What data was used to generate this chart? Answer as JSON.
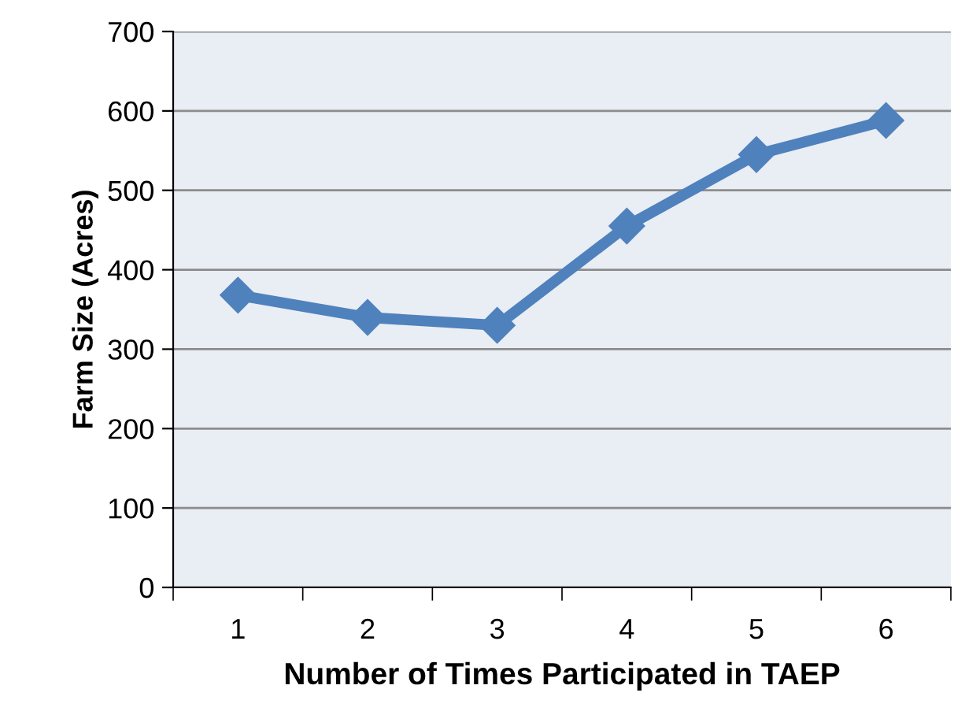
{
  "chart_data": {
    "type": "line",
    "xlabel": "Number of Times Participated in TAEP",
    "ylabel": "Farm Size (Acres)",
    "categories": [
      "1",
      "2",
      "3",
      "4",
      "5",
      "6"
    ],
    "series": [
      {
        "color": "#4f81bd",
        "values": [
          368,
          340,
          330,
          455,
          545,
          588
        ]
      }
    ],
    "ylim": [
      0,
      700
    ],
    "yticks": [
      0,
      100,
      200,
      300,
      400,
      500,
      600,
      700
    ],
    "grid": "y",
    "marker": "diamond",
    "line_style": "solid"
  }
}
